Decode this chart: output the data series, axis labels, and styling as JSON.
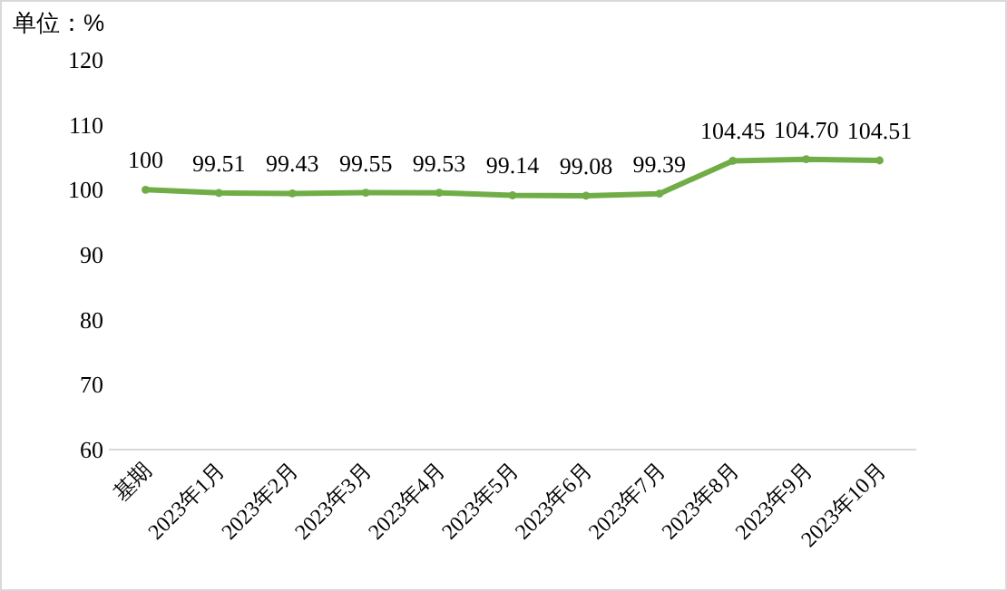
{
  "chart_data": {
    "type": "line",
    "ylabel": "单位：%",
    "categories": [
      "基期",
      "2023年1月",
      "2023年2月",
      "2023年3月",
      "2023年4月",
      "2023年5月",
      "2023年6月",
      "2023年7月",
      "2023年8月",
      "2023年9月",
      "2023年10月"
    ],
    "series": [
      {
        "color": "#70ad47",
        "values": [
          100,
          99.51,
          99.43,
          99.55,
          99.53,
          99.14,
          99.08,
          99.39,
          104.45,
          104.7,
          104.51
        ],
        "value_labels": [
          "100",
          "99.51",
          "99.43",
          "99.55",
          "99.53",
          "99.14",
          "99.08",
          "99.39",
          "104.45",
          "104.70",
          "104.51"
        ]
      }
    ],
    "ylim": [
      60,
      120
    ],
    "yticks": [
      60,
      70,
      80,
      90,
      100,
      110,
      120
    ],
    "marker": "circle"
  }
}
